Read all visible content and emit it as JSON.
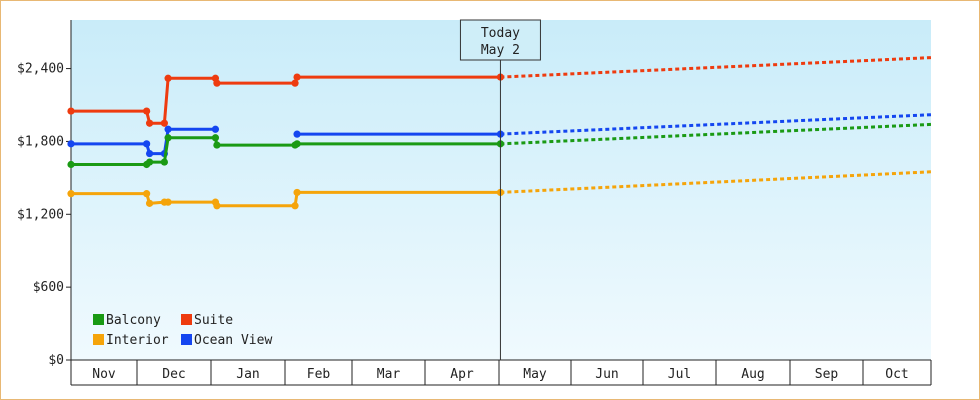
{
  "chart_data": {
    "type": "line",
    "ylim": [
      0,
      2800
    ],
    "y_ticks": [
      {
        "value": 0,
        "label": "$0"
      },
      {
        "value": 600,
        "label": "$600"
      },
      {
        "value": 1200,
        "label": "$1,200"
      },
      {
        "value": 1800,
        "label": "$1,800"
      },
      {
        "value": 2400,
        "label": "$2,400"
      }
    ],
    "months": [
      "Nov",
      "Dec",
      "Jan",
      "Feb",
      "Mar",
      "Apr",
      "May",
      "Jun",
      "Jul",
      "Aug",
      "Sep",
      "Oct"
    ],
    "today": {
      "line1": "Today",
      "line2": "May 2",
      "x": 6.02
    },
    "legend": {
      "placement": "bottom-left"
    },
    "grid": "none",
    "background": "light blue gradient",
    "series": [
      {
        "name": "Suite",
        "color": "#ee3b0f",
        "points": [
          [
            0.0,
            2050
          ],
          [
            1.13,
            2050
          ],
          [
            1.17,
            1950
          ],
          [
            1.37,
            1950
          ],
          [
            1.42,
            2320
          ],
          [
            2.06,
            2320
          ],
          [
            2.08,
            2280
          ],
          [
            3.15,
            2280
          ],
          [
            3.18,
            2330
          ],
          [
            6.02,
            2330
          ]
        ],
        "forecast": [
          [
            6.02,
            2330
          ],
          [
            12.0,
            2490
          ]
        ]
      },
      {
        "name": "Ocean View",
        "color": "#1446f0",
        "points": [
          [
            0.0,
            1780
          ],
          [
            1.13,
            1780
          ],
          [
            1.17,
            1700
          ],
          [
            1.37,
            1700
          ],
          [
            1.42,
            1900
          ],
          [
            2.06,
            1900
          ]
        ],
        "points2": [
          [
            3.18,
            1860
          ],
          [
            6.02,
            1860
          ]
        ],
        "forecast": [
          [
            6.02,
            1860
          ],
          [
            12.0,
            2020
          ]
        ]
      },
      {
        "name": "Balcony",
        "color": "#1a9a14",
        "points": [
          [
            0.0,
            1610
          ],
          [
            1.13,
            1610
          ],
          [
            1.17,
            1630
          ],
          [
            1.37,
            1630
          ],
          [
            1.42,
            1830
          ],
          [
            2.06,
            1830
          ],
          [
            2.08,
            1770
          ],
          [
            3.15,
            1770
          ],
          [
            3.18,
            1780
          ],
          [
            6.02,
            1780
          ]
        ],
        "forecast": [
          [
            6.02,
            1780
          ],
          [
            12.0,
            1940
          ]
        ]
      },
      {
        "name": "Interior",
        "color": "#f5a40a",
        "points": [
          [
            0.0,
            1370
          ],
          [
            1.13,
            1370
          ],
          [
            1.17,
            1290
          ],
          [
            1.37,
            1300
          ],
          [
            1.42,
            1300
          ],
          [
            2.06,
            1300
          ],
          [
            2.08,
            1270
          ],
          [
            3.15,
            1270
          ],
          [
            3.18,
            1380
          ],
          [
            6.02,
            1380
          ]
        ],
        "forecast": [
          [
            6.02,
            1380
          ],
          [
            12.0,
            1550
          ]
        ]
      }
    ]
  }
}
